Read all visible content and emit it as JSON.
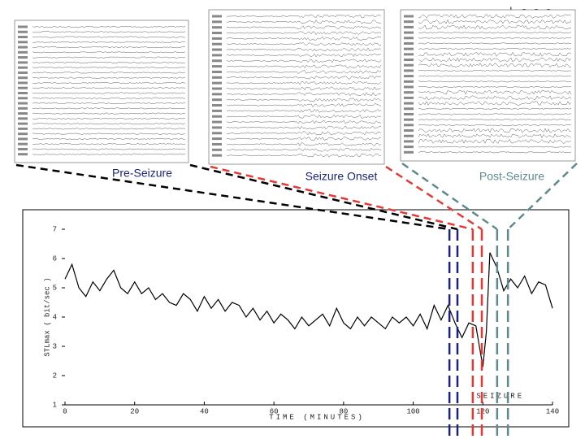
{
  "chart_data": {
    "type": "line",
    "x_label": "TIME (MINUTES)",
    "y_label": "STLmax ( bit/sec )",
    "annotation": "SEIZURE",
    "color": "#000000",
    "x": [
      0,
      2,
      4,
      6,
      8,
      10,
      12,
      14,
      16,
      18,
      20,
      22,
      24,
      26,
      28,
      30,
      32,
      34,
      36,
      38,
      40,
      42,
      44,
      46,
      48,
      50,
      52,
      54,
      56,
      58,
      60,
      62,
      64,
      66,
      68,
      70,
      72,
      74,
      76,
      78,
      80,
      82,
      84,
      86,
      88,
      90,
      92,
      94,
      96,
      98,
      100,
      102,
      104,
      106,
      108,
      110,
      112,
      114,
      116,
      118,
      120,
      121,
      122,
      124,
      126,
      128,
      130,
      132,
      134,
      136,
      138,
      140
    ],
    "values": [
      5.3,
      5.8,
      5.0,
      4.7,
      5.2,
      4.9,
      5.3,
      5.6,
      5.0,
      4.8,
      5.2,
      4.8,
      5.0,
      4.6,
      4.8,
      4.5,
      4.4,
      4.8,
      4.6,
      4.2,
      4.7,
      4.3,
      4.6,
      4.2,
      4.5,
      4.4,
      4.0,
      4.3,
      3.9,
      4.2,
      3.8,
      4.1,
      3.9,
      3.6,
      4.0,
      3.7,
      3.9,
      4.1,
      3.7,
      4.3,
      3.8,
      3.6,
      4.0,
      3.7,
      4.0,
      3.8,
      3.6,
      4.0,
      3.8,
      4.0,
      3.7,
      4.1,
      3.6,
      4.4,
      3.9,
      4.4,
      3.8,
      3.3,
      3.8,
      3.7,
      2.3,
      3.5,
      6.2,
      5.7,
      4.9,
      5.3,
      5.0,
      5.4,
      4.8,
      5.2,
      5.1,
      4.3
    ],
    "xlim": [
      0,
      140
    ],
    "xticks": [
      0,
      20,
      40,
      60,
      80,
      100,
      120,
      140
    ],
    "ylim": [
      1,
      7
    ],
    "yticks": [
      1,
      2,
      3,
      4,
      5,
      6,
      7
    ],
    "windows": [
      {
        "name": "Pre-Seizure",
        "color": "#1a237e",
        "line_color": "#000000",
        "x": [
          110.4,
          112.7
        ]
      },
      {
        "name": "Seizure Onset",
        "color": "#1a237e",
        "line_color": "#e53935",
        "x": [
          117.1,
          119.7
        ]
      },
      {
        "name": "Post-Seizure",
        "color": "#5f8a8b",
        "line_color": "#5f8a8b",
        "x": [
          124.1,
          127.2
        ]
      }
    ]
  }
}
